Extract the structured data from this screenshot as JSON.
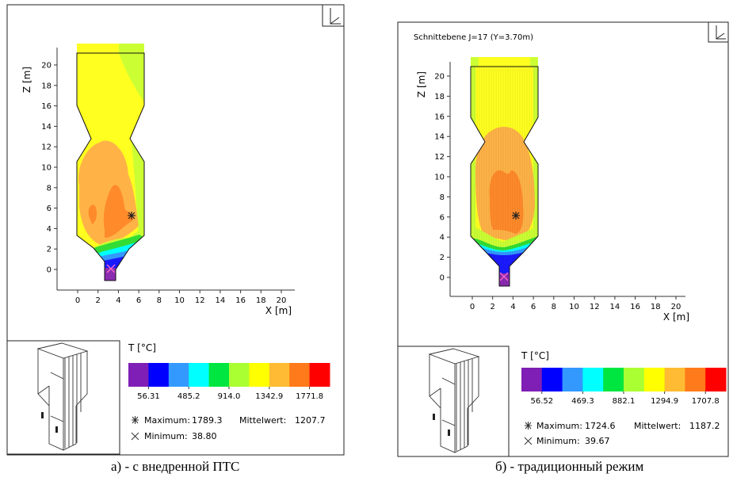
{
  "panels": [
    {
      "title": "",
      "caption": "а) - с внедренной ПТС",
      "x_axis_label": "X [m]",
      "z_axis_label": "Z [m]",
      "x_ticks": [
        "0",
        "2",
        "4",
        "6",
        "8",
        "10",
        "12",
        "14",
        "16",
        "18",
        "20"
      ],
      "z_ticks": [
        "0",
        "2",
        "4",
        "6",
        "8",
        "10",
        "12",
        "14",
        "16",
        "18",
        "20"
      ],
      "legend_title": "T [°C]",
      "legend_ticks": [
        "56.31",
        "485.2",
        "914.0",
        "1342.9",
        "1771.8"
      ],
      "max_label": "Maximum:",
      "max_value": "1789.3",
      "mean_label": "Mittelwert:",
      "mean_value": "1207.7",
      "min_label": "Minimum:",
      "min_value": "38.80"
    },
    {
      "title": "Schnittebene J=17 (Y=3.70m)",
      "caption": "б) - традиционный режим",
      "x_axis_label": "X [m]",
      "z_axis_label": "Z [m]",
      "x_ticks": [
        "0",
        "2",
        "4",
        "6",
        "8",
        "10",
        "12",
        "14",
        "16",
        "18",
        "20"
      ],
      "z_ticks": [
        "0",
        "2",
        "4",
        "6",
        "8",
        "10",
        "12",
        "14",
        "16",
        "18",
        "20"
      ],
      "legend_title": "T [°C]",
      "legend_ticks": [
        "56.52",
        "469.3",
        "882.1",
        "1294.9",
        "1707.8"
      ],
      "max_label": "Maximum:",
      "max_value": "1724.6",
      "mean_label": "Mittelwert:",
      "mean_value": "1187.2",
      "min_label": "Minimum:",
      "min_value": "39.67"
    }
  ],
  "colors": {
    "scale": [
      "#7f1fb5",
      "#0000ff",
      "#3399ff",
      "#00ffff",
      "#00e640",
      "#aaff33",
      "#ffff00",
      "#ffbb33",
      "#ff7a1a",
      "#ff0000"
    ],
    "purple": "#8a2bb0",
    "blue": "#1a1aff",
    "lightblue": "#3399ff",
    "cyan": "#00ffff",
    "green": "#33dd33",
    "lime": "#ccff33",
    "yellow": "#ffff20",
    "orange": "#ffb347",
    "darkorange": "#ff8a2a"
  },
  "chart_data": [
    {
      "type": "heatmap",
      "title": "",
      "xlabel": "X [m]",
      "ylabel": "Z [m]",
      "xlim": [
        -2,
        21
      ],
      "ylim": [
        -2,
        21
      ],
      "variable": "T [°C]",
      "colorbar_ticks": [
        56.31,
        485.2,
        914.0,
        1342.9,
        1771.8
      ],
      "maximum": 1789.3,
      "mean": 1207.7,
      "minimum": 38.8,
      "max_location": [
        5.4,
        5.3
      ],
      "min_location": [
        3.2,
        0.1
      ]
    },
    {
      "type": "heatmap",
      "title": "Schnittebene J=17 (Y=3.70m)",
      "xlabel": "X [m]",
      "ylabel": "Z [m]",
      "xlim": [
        -2,
        21
      ],
      "ylim": [
        -2,
        21
      ],
      "variable": "T [°C]",
      "colorbar_ticks": [
        56.52,
        469.3,
        882.1,
        1294.9,
        1707.8
      ],
      "maximum": 1724.6,
      "mean": 1187.2,
      "minimum": 39.67,
      "max_location": [
        4.3,
        6.1
      ],
      "min_location": [
        3.1,
        0.1
      ]
    }
  ]
}
